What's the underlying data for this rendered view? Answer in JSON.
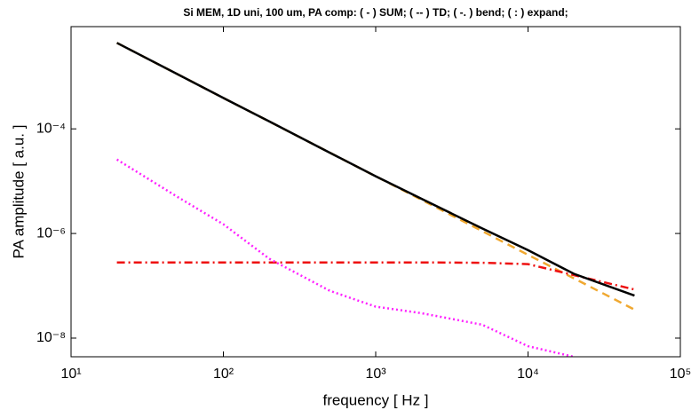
{
  "chart_data": {
    "type": "line",
    "title": "Si MEM, 1D uni, 100 um, PA comp:  ( - ) SUM;  ( -- ) TD;  ( -. ) bend;  ( : ) expand;",
    "x_label": "frequency   [ Hz ]",
    "y_label": "PA amplitude   [ a.u. ]",
    "xscale": "log",
    "yscale": "log",
    "xlim": [
      10,
      100000
    ],
    "ylim": [
      4.4e-09,
      0.009
    ],
    "xticks": [
      {
        "value": 10,
        "label": "10¹"
      },
      {
        "value": 100,
        "label": "10²"
      },
      {
        "value": 1000,
        "label": "10³"
      },
      {
        "value": 10000,
        "label": "10⁴"
      },
      {
        "value": 100000,
        "label": "10⁵"
      }
    ],
    "yticks": [
      {
        "value": 1e-08,
        "label": "10⁻⁸"
      },
      {
        "value": 1e-06,
        "label": "10⁻⁶"
      },
      {
        "value": 0.0001,
        "label": "10⁻⁴"
      }
    ],
    "x": [
      20,
      50,
      100,
      200,
      500,
      1000,
      2000,
      5000,
      10000,
      20000,
      50000
    ],
    "series": [
      {
        "color": "#f0a830",
        "dash": "dashed",
        "values": [
          0.0044,
          0.00111,
          0.00039,
          0.000139,
          3.5e-05,
          1.24e-05,
          4.4e-06,
          1.11e-06,
          3.9e-07,
          1.39e-07,
          3.5e-08
        ]
      },
      {
        "color": "#ee1111",
        "dash": "dashdot",
        "values": [
          2.8e-07,
          2.8e-07,
          2.8e-07,
          2.8e-07,
          2.8e-07,
          2.8e-07,
          2.8e-07,
          2.75e-07,
          2.6e-07,
          1.6e-07,
          8.5e-08
        ]
      },
      {
        "color": "#ff22ff",
        "dash": "dotted",
        "values": [
          2.6e-05,
          5e-06,
          1.5e-06,
          3.3e-07,
          8e-08,
          4e-08,
          3e-08,
          1.8e-08,
          7e-09,
          4.4e-09,
          null
        ]
      },
      {
        "color": "#000000",
        "dash": "solid",
        "values": [
          0.0044,
          0.00111,
          0.00039,
          0.000139,
          3.5e-05,
          1.24e-05,
          4.6e-06,
          1.25e-06,
          4.8e-07,
          1.7e-07,
          6.5e-08
        ]
      }
    ]
  }
}
